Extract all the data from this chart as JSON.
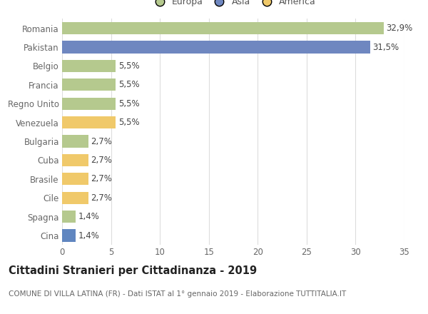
{
  "categories": [
    "Romania",
    "Pakistan",
    "Belgio",
    "Francia",
    "Regno Unito",
    "Venezuela",
    "Bulgaria",
    "Cuba",
    "Brasile",
    "Cile",
    "Spagna",
    "Cina"
  ],
  "values": [
    32.9,
    31.5,
    5.5,
    5.5,
    5.5,
    5.5,
    2.7,
    2.7,
    2.7,
    2.7,
    1.4,
    1.4
  ],
  "labels": [
    "32,9%",
    "31,5%",
    "5,5%",
    "5,5%",
    "5,5%",
    "5,5%",
    "2,7%",
    "2,7%",
    "2,7%",
    "2,7%",
    "1,4%",
    "1,4%"
  ],
  "colors": [
    "#b5c98e",
    "#6f87c0",
    "#b5c98e",
    "#b5c98e",
    "#b5c98e",
    "#f0c96a",
    "#b5c98e",
    "#f0c96a",
    "#f0c96a",
    "#f0c96a",
    "#b5c98e",
    "#6086c0"
  ],
  "legend_labels": [
    "Europa",
    "Asia",
    "America"
  ],
  "legend_colors": [
    "#b5c98e",
    "#6f87c0",
    "#f0c96a"
  ],
  "title": "Cittadini Stranieri per Cittadinanza - 2019",
  "subtitle": "COMUNE DI VILLA LATINA (FR) - Dati ISTAT al 1° gennaio 2019 - Elaborazione TUTTITALIA.IT",
  "xlim": [
    0,
    35
  ],
  "xticks": [
    0,
    5,
    10,
    15,
    20,
    25,
    30,
    35
  ],
  "background_color": "#ffffff",
  "grid_color": "#dddddd",
  "bar_height": 0.65,
  "label_fontsize": 8.5,
  "title_fontsize": 10.5,
  "subtitle_fontsize": 7.5
}
